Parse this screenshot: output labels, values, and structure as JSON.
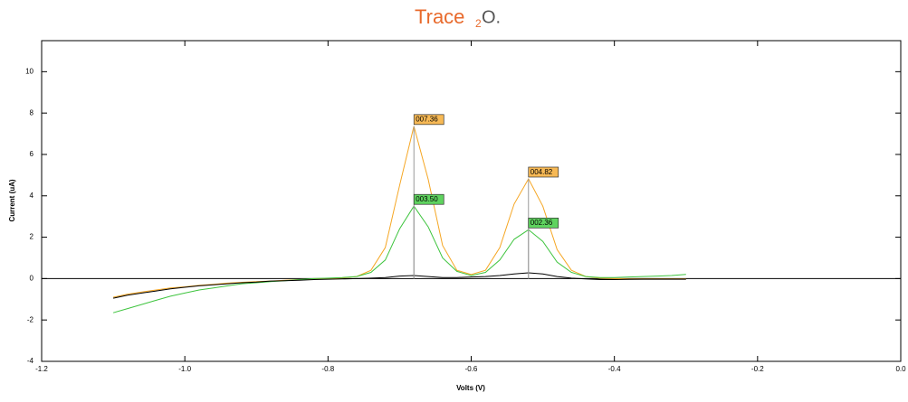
{
  "chart_data": {
    "type": "line",
    "brand": {
      "name": "Trace",
      "sub": "2",
      "suffix": "O."
    },
    "xlabel": "Volts (V)",
    "ylabel": "Current (uA)",
    "xlim": [
      -1.2,
      0
    ],
    "ylim": [
      -4,
      11.5
    ],
    "xticks": [
      -1.2,
      {
        "value": -1,
        "label": "-1.0"
      },
      -0.8,
      -0.6,
      -0.4,
      -0.2,
      {
        "value": 0,
        "label": "0.0"
      }
    ],
    "yticks": [
      -4,
      -2,
      0,
      2,
      4,
      6,
      8,
      10
    ],
    "x": [
      -1.1,
      -1.08,
      -1.06,
      -1.04,
      -1.02,
      -1.0,
      -0.98,
      -0.96,
      -0.94,
      -0.92,
      -0.9,
      -0.88,
      -0.86,
      -0.84,
      -0.82,
      -0.8,
      -0.78,
      -0.76,
      -0.74,
      -0.72,
      -0.7,
      -0.68,
      -0.66,
      -0.64,
      -0.62,
      -0.6,
      -0.58,
      -0.56,
      -0.54,
      -0.52,
      -0.5,
      -0.48,
      -0.46,
      -0.44,
      -0.42,
      -0.4,
      -0.38,
      -0.36,
      -0.34,
      -0.32,
      -0.3
    ],
    "series": [
      {
        "color": "#f5a623",
        "label_fill": "#f7b955",
        "values": [
          -0.9,
          -0.75,
          -0.65,
          -0.55,
          -0.45,
          -0.4,
          -0.33,
          -0.28,
          -0.22,
          -0.18,
          -0.15,
          -0.12,
          -0.08,
          -0.05,
          -0.02,
          0,
          0.03,
          0.1,
          0.4,
          1.5,
          4.5,
          7.36,
          4.8,
          1.6,
          0.4,
          0.2,
          0.4,
          1.5,
          3.6,
          4.82,
          3.5,
          1.4,
          0.4,
          0.1,
          0.02,
          0,
          -0.02,
          -0.02,
          -0.02,
          -0.02,
          -0.02
        ],
        "peaks": [
          {
            "x": -0.68,
            "value": 7.36,
            "label": "007.36"
          },
          {
            "x": -0.52,
            "value": 4.82,
            "label": "004.82"
          }
        ]
      },
      {
        "color": "#3ec43e",
        "label_fill": "#5fd35f",
        "values": [
          -1.65,
          -1.45,
          -1.25,
          -1.05,
          -0.85,
          -0.7,
          -0.55,
          -0.45,
          -0.35,
          -0.25,
          -0.2,
          -0.15,
          -0.1,
          -0.05,
          0,
          0.02,
          0.05,
          0.1,
          0.3,
          0.9,
          2.4,
          3.5,
          2.5,
          1.0,
          0.35,
          0.15,
          0.3,
          0.9,
          1.9,
          2.36,
          1.8,
          0.8,
          0.3,
          0.1,
          0.05,
          0.05,
          0.08,
          0.1,
          0.12,
          0.15,
          0.2
        ],
        "peaks": [
          {
            "x": -0.68,
            "value": 3.5,
            "label": "003.50"
          },
          {
            "x": -0.52,
            "value": 2.36,
            "label": "002.36"
          }
        ]
      },
      {
        "color": "#000000",
        "values": [
          -0.95,
          -0.8,
          -0.7,
          -0.6,
          -0.5,
          -0.42,
          -0.35,
          -0.3,
          -0.25,
          -0.2,
          -0.17,
          -0.12,
          -0.1,
          -0.08,
          -0.05,
          -0.03,
          -0.02,
          0,
          0.02,
          0.05,
          0.12,
          0.15,
          0.1,
          0.05,
          0.05,
          0.08,
          0.1,
          0.15,
          0.22,
          0.28,
          0.22,
          0.1,
          0.02,
          -0.02,
          -0.05,
          -0.05,
          -0.04,
          -0.03,
          -0.03,
          -0.03,
          -0.03
        ]
      }
    ]
  }
}
